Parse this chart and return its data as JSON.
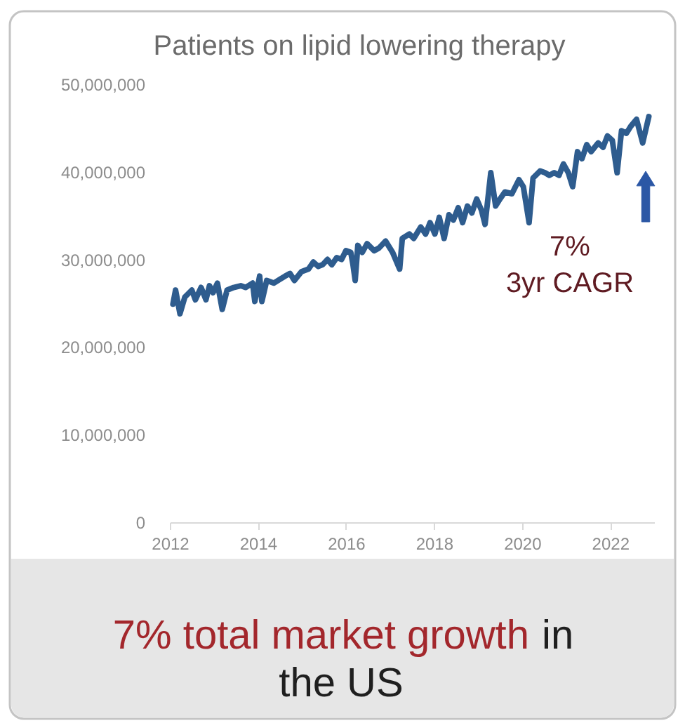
{
  "chart_data": {
    "type": "line",
    "title": "Patients on lipid lowering therapy",
    "x": [
      2012.07,
      2012.13,
      2012.23,
      2012.34,
      2012.5,
      2012.58,
      2012.71,
      2012.82,
      2012.9,
      2012.98,
      2013.08,
      2013.19,
      2013.3,
      2013.45,
      2013.61,
      2013.72,
      2013.88,
      2013.93,
      2014.04,
      2014.09,
      2014.2,
      2014.36,
      2014.52,
      2014.62,
      2014.73,
      2014.83,
      2014.99,
      2015.15,
      2015.26,
      2015.37,
      2015.47,
      2015.58,
      2015.68,
      2015.79,
      2015.9,
      2016.0,
      2016.11,
      2016.16,
      2016.21,
      2016.27,
      2016.37,
      2016.48,
      2016.64,
      2016.75,
      2016.9,
      2017.06,
      2017.22,
      2017.28,
      2017.44,
      2017.54,
      2017.7,
      2017.81,
      2017.91,
      2018.02,
      2018.12,
      2018.23,
      2018.34,
      2018.44,
      2018.55,
      2018.65,
      2018.76,
      2018.86,
      2018.97,
      2019.08,
      2019.16,
      2019.29,
      2019.4,
      2019.5,
      2019.61,
      2019.77,
      2019.93,
      2020.03,
      2020.16,
      2020.25,
      2020.41,
      2020.52,
      2020.62,
      2020.73,
      2020.84,
      2020.94,
      2021.05,
      2021.15,
      2021.26,
      2021.36,
      2021.47,
      2021.57,
      2021.73,
      2021.84,
      2021.94,
      2022.05,
      2022.16,
      2022.26,
      2022.37,
      2022.47,
      2022.6,
      2022.74,
      2022.88
    ],
    "series": [
      {
        "color": "#2e5c8e",
        "values": [
          24900000,
          26500000,
          23800000,
          25700000,
          26500000,
          25400000,
          26800000,
          25400000,
          27000000,
          26200000,
          27300000,
          24300000,
          26500000,
          26800000,
          27000000,
          26800000,
          27300000,
          25200000,
          28100000,
          25200000,
          27600000,
          27300000,
          27800000,
          28100000,
          28400000,
          27600000,
          28600000,
          28900000,
          29700000,
          29200000,
          29400000,
          30000000,
          29400000,
          30200000,
          30000000,
          31000000,
          30800000,
          29400000,
          27600000,
          31600000,
          30800000,
          31800000,
          31000000,
          31300000,
          32100000,
          30800000,
          28900000,
          32400000,
          32900000,
          32400000,
          33700000,
          32900000,
          34200000,
          32900000,
          34800000,
          32400000,
          35100000,
          34500000,
          35900000,
          34200000,
          36100000,
          35300000,
          36900000,
          35600000,
          34000000,
          39900000,
          36100000,
          36900000,
          37700000,
          37500000,
          39100000,
          38300000,
          34200000,
          39300000,
          40100000,
          39900000,
          39600000,
          39900000,
          39600000,
          40900000,
          39900000,
          38300000,
          42300000,
          41500000,
          43100000,
          42300000,
          43300000,
          42800000,
          44100000,
          43600000,
          39900000,
          44700000,
          44400000,
          45200000,
          46000000,
          43300000,
          46300000
        ]
      }
    ],
    "xlim": [
      2012,
      2023
    ],
    "xticks": [
      2012,
      2014,
      2016,
      2018,
      2020,
      2022
    ],
    "ylim": [
      0,
      50000000
    ],
    "yticks": [
      0,
      {
        "value": 10000000,
        "label": "10,000,000"
      },
      {
        "value": 20000000,
        "label": "20,000,000"
      },
      {
        "value": 30000000,
        "label": "30,000,000"
      },
      {
        "value": 40000000,
        "label": "40,000,000"
      },
      {
        "value": 50000000,
        "label": "50,000,000"
      }
    ],
    "annotations": [
      "7%\n3yr CAGR",
      "7% total market growth",
      "in",
      "the US"
    ]
  }
}
